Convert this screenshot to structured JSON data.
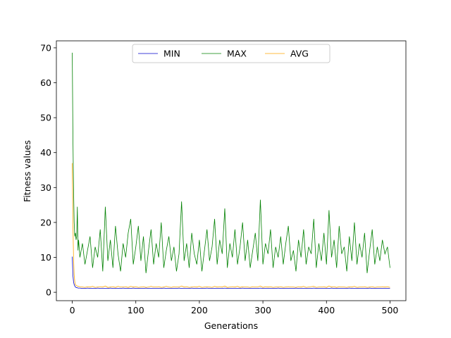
{
  "chart_data": {
    "type": "line",
    "xlabel": "Generations",
    "ylabel": "Fitness values",
    "xlim": [
      -25,
      525
    ],
    "ylim": [
      -2.4,
      72
    ],
    "xticks": [
      0,
      100,
      200,
      300,
      400,
      500
    ],
    "yticks": [
      0,
      10,
      20,
      30,
      40,
      50,
      60,
      70
    ],
    "legend": "upper center",
    "x": [
      0,
      1,
      2,
      3,
      4,
      5,
      6,
      7,
      8,
      9,
      10,
      12,
      16,
      20,
      24,
      28,
      32,
      36,
      40,
      44,
      48,
      52,
      56,
      60,
      64,
      68,
      72,
      76,
      80,
      84,
      88,
      92,
      96,
      100,
      104,
      108,
      112,
      116,
      120,
      124,
      128,
      132,
      136,
      140,
      144,
      148,
      152,
      156,
      160,
      164,
      168,
      172,
      176,
      180,
      184,
      188,
      192,
      196,
      200,
      204,
      208,
      212,
      216,
      220,
      224,
      228,
      232,
      236,
      240,
      244,
      248,
      252,
      256,
      260,
      264,
      268,
      272,
      276,
      280,
      284,
      288,
      292,
      296,
      300,
      304,
      308,
      312,
      316,
      320,
      324,
      328,
      332,
      336,
      340,
      344,
      348,
      352,
      356,
      360,
      364,
      368,
      372,
      376,
      380,
      384,
      388,
      392,
      396,
      400,
      404,
      408,
      412,
      416,
      420,
      424,
      428,
      432,
      436,
      440,
      444,
      448,
      452,
      456,
      460,
      464,
      468,
      472,
      476,
      480,
      484,
      488,
      492,
      496,
      500
    ],
    "series": [
      {
        "name": "MIN",
        "color": "#0000cc",
        "values": [
          10.2,
          5,
          3,
          2.2,
          1.8,
          1.5,
          1.4,
          1.3,
          1.3,
          1.2,
          1.2,
          1.2,
          1.1,
          1.1,
          1.2,
          1.1,
          1.1,
          1.1,
          1.2,
          1.1,
          1.1,
          1.1,
          1.1,
          1.2,
          1.1,
          1.1,
          1.1,
          1.1,
          1.2,
          1.1,
          1.1,
          1.1,
          1.2,
          1.1,
          1.1,
          1.1,
          1.1,
          1.2,
          1.1,
          1.1,
          1.1,
          1.1,
          1.1,
          1.1,
          1.2,
          1.1,
          1.1,
          1.1,
          1.1,
          1.1,
          1.2,
          1.1,
          1.1,
          1.1,
          1.1,
          1.2,
          1.1,
          1.1,
          1.1,
          1.1,
          1.1,
          1.2,
          1.1,
          1.1,
          1.1,
          1.1,
          1.1,
          1.1,
          1.2,
          1.1,
          1.1,
          1.1,
          1.1,
          1.1,
          1.1,
          1.2,
          1.1,
          1.1,
          1.1,
          1.1,
          1.1,
          1.1,
          1.2,
          1.1,
          1.1,
          1.1,
          1.1,
          1.1,
          1.1,
          1.2,
          1.1,
          1.1,
          1.1,
          1.1,
          1.1,
          1.1,
          1.2,
          1.1,
          1.1,
          1.1,
          1.1,
          1.1,
          1.1,
          1.2,
          1.1,
          1.1,
          1.1,
          1.1,
          1.1,
          1.1,
          1.2,
          1.1,
          1.1,
          1.1,
          1.1,
          1.1,
          1.1,
          1.2,
          1.1,
          1.1,
          1.1,
          1.1,
          1.1,
          1.1,
          1.1,
          1.2,
          1.1,
          1.1,
          1.1,
          1.1,
          1.1,
          1.1,
          1.1,
          1.1
        ]
      },
      {
        "name": "MAX",
        "color": "#008000",
        "values": [
          68.6,
          45,
          30,
          20,
          16,
          17,
          15,
          16,
          24.5,
          12,
          15,
          10,
          14,
          8,
          12,
          16,
          7,
          13,
          10,
          18,
          6,
          24.5,
          9,
          15,
          7,
          19,
          11,
          6,
          14,
          10,
          17,
          21,
          8,
          13,
          19,
          9,
          16,
          5.5,
          12,
          18,
          8,
          14,
          10,
          20,
          7,
          12,
          16,
          9,
          13,
          6,
          11,
          26,
          9,
          14,
          7,
          17,
          11,
          8,
          15,
          6,
          12,
          18,
          9,
          13,
          21,
          8,
          15,
          11,
          24,
          7,
          14,
          10,
          18,
          8,
          13,
          20,
          9,
          15,
          7,
          12,
          17,
          9,
          26.5,
          8,
          14,
          11,
          18,
          7,
          13,
          10,
          16,
          8,
          14,
          19,
          9,
          12,
          6,
          15,
          10,
          18,
          8,
          13,
          11,
          21,
          7,
          14,
          9,
          17,
          8,
          23.5,
          10,
          15,
          7,
          19,
          11,
          13,
          6,
          16,
          9,
          20,
          8,
          14,
          10,
          17,
          5.5,
          12,
          18,
          8,
          13,
          9,
          15,
          11,
          13,
          7
        ]
      },
      {
        "name": "AVG",
        "color": "#ffa500",
        "values": [
          37,
          20,
          10,
          5,
          3,
          2.2,
          2,
          1.9,
          1.8,
          1.7,
          1.7,
          1.6,
          1.5,
          1.4,
          1.6,
          1.5,
          1.7,
          1.4,
          1.5,
          1.6,
          1.5,
          1.8,
          1.4,
          1.5,
          1.6,
          1.4,
          1.7,
          1.5,
          1.5,
          1.6,
          1.4,
          1.7,
          1.5,
          1.6,
          1.4,
          1.5,
          1.6,
          1.4,
          1.5,
          1.7,
          1.5,
          1.5,
          1.6,
          1.4,
          1.5,
          1.7,
          1.5,
          1.4,
          1.6,
          1.5,
          1.5,
          1.8,
          1.5,
          1.6,
          1.4,
          1.5,
          1.6,
          1.5,
          1.7,
          1.4,
          1.5,
          1.6,
          1.5,
          1.4,
          1.7,
          1.5,
          1.6,
          1.5,
          1.8,
          1.4,
          1.5,
          1.6,
          1.5,
          1.7,
          1.4,
          1.6,
          1.5,
          1.5,
          1.4,
          1.6,
          1.5,
          1.5,
          1.8,
          1.4,
          1.6,
          1.5,
          1.6,
          1.4,
          1.5,
          1.5,
          1.6,
          1.4,
          1.5,
          1.6,
          1.5,
          1.5,
          1.4,
          1.6,
          1.5,
          1.7,
          1.4,
          1.5,
          1.6,
          1.7,
          1.4,
          1.5,
          1.5,
          1.6,
          1.4,
          1.8,
          1.5,
          1.6,
          1.4,
          1.6,
          1.5,
          1.5,
          1.4,
          1.6,
          1.5,
          1.7,
          1.4,
          1.5,
          1.5,
          1.6,
          1.4,
          1.5,
          1.6,
          1.4,
          1.5,
          1.5,
          1.6,
          1.5,
          1.6,
          1.4
        ]
      }
    ]
  }
}
